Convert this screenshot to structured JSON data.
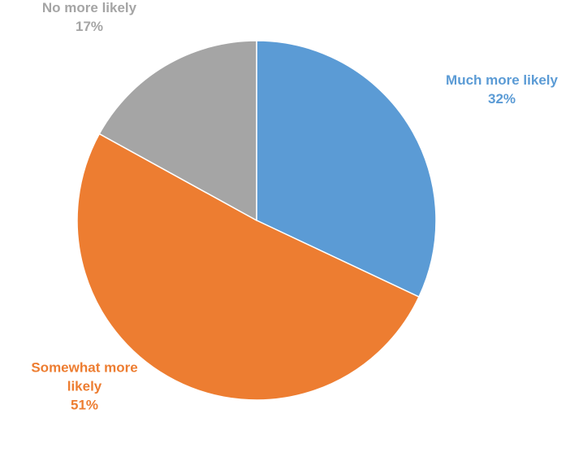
{
  "chart_data": {
    "type": "pie",
    "title": "",
    "start_angle_deg": 0,
    "direction": "clockwise",
    "legend": "none",
    "slices": [
      {
        "category": "Much more likely",
        "value": 32,
        "value_label": "32%",
        "label_lines": [
          "Much more likely"
        ],
        "color": "#5B9BD5"
      },
      {
        "category": "Somewhat more likely",
        "value": 51,
        "value_label": "51%",
        "label_lines": [
          "Somewhat more",
          "likely"
        ],
        "color": "#ED7D31"
      },
      {
        "category": "No more likely",
        "value": 17,
        "value_label": "17%",
        "label_lines": [
          "No more likely"
        ],
        "color": "#A5A5A5"
      }
    ]
  }
}
